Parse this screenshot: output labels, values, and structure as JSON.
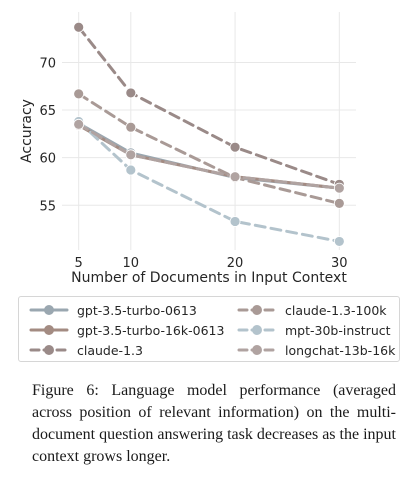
{
  "chart_data": {
    "type": "line",
    "xlabel": "Number of Documents in Input Context",
    "ylabel": "Accuracy",
    "x": [
      5,
      10,
      20,
      30
    ],
    "xlim": [
      3.4,
      31.6
    ],
    "ylim": [
      50.3,
      75.3
    ],
    "xticks": [
      5,
      10,
      20,
      30
    ],
    "yticks": [
      55,
      60,
      65,
      70
    ],
    "grid": true,
    "legend_position": "bottom",
    "series": [
      {
        "name": "gpt-3.5-turbo-0613",
        "color": "#9aa7b0",
        "dashed": false,
        "values": [
          63.6,
          60.5,
          57.9,
          56.8
        ]
      },
      {
        "name": "gpt-3.5-turbo-16k-0613",
        "color": "#a38b82",
        "dashed": false,
        "values": [
          63.4,
          60.3,
          58.0,
          56.8
        ]
      },
      {
        "name": "claude-1.3",
        "color": "#9a8a88",
        "dashed": true,
        "values": [
          73.7,
          66.8,
          61.1,
          57.2
        ]
      },
      {
        "name": "claude-1.3-100k",
        "color": "#a99a96",
        "dashed": true,
        "values": [
          66.7,
          63.2,
          57.9,
          55.2
        ]
      },
      {
        "name": "mpt-30b-instruct",
        "color": "#b3c3cc",
        "dashed": true,
        "values": [
          63.8,
          58.7,
          53.3,
          51.2
        ]
      },
      {
        "name": "longchat-13b-16k",
        "color": "#b0a3a1",
        "dashed": true,
        "values": [
          63.5,
          60.3,
          58.0,
          56.8
        ]
      }
    ]
  },
  "legend": {
    "items": [
      {
        "label": "gpt-3.5-turbo-0613",
        "series": 0
      },
      {
        "label": "claude-1.3-100k",
        "series": 3
      },
      {
        "label": "gpt-3.5-turbo-16k-0613",
        "series": 1
      },
      {
        "label": "mpt-30b-instruct",
        "series": 4
      },
      {
        "label": "claude-1.3",
        "series": 2
      },
      {
        "label": "longchat-13b-16k",
        "series": 5
      }
    ]
  },
  "caption": {
    "lines": [
      "Figure 6: Language model performance (averaged",
      "across position of relevant information) on the multi-",
      "document question answering task decreases as the input",
      "context grows longer."
    ]
  }
}
